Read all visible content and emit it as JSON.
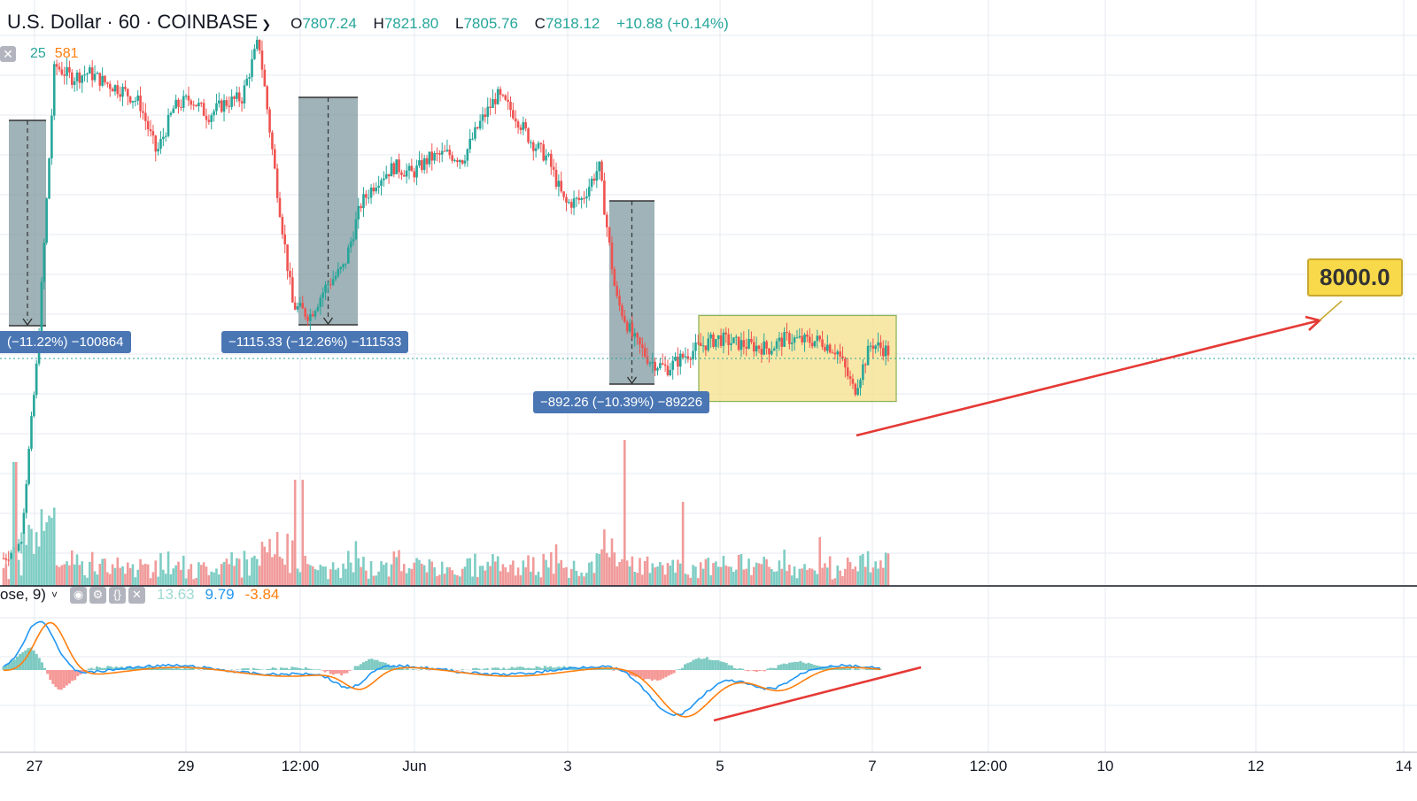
{
  "header": {
    "symbol": "U.S. Dollar",
    "interval": "60",
    "exchange": "COINBASE",
    "open_label": "O",
    "open": "7807.24",
    "high_label": "H",
    "high": "7821.80",
    "low_label": "L",
    "low": "7805.76",
    "close_label": "C",
    "close": "7818.12",
    "change": "+10.88 (+0.14%)"
  },
  "volume_legend": {
    "ma": "25",
    "value": "581"
  },
  "macd_legend": {
    "title": "ose, 9)",
    "hist": "13.63",
    "macd": "9.79",
    "signal": "-3.84"
  },
  "measure_labels": [
    "(−11.22%) −100864",
    "−1115.33 (−12.26%) −111533",
    "−892.26 (−10.39%) −89226"
  ],
  "target_callout": "8000.0",
  "colors": {
    "up": "#26a69a",
    "down": "#ef5350",
    "vol_up": "#7ecdc4",
    "vol_down": "#f19a9a",
    "macd_line": "#2196f3",
    "signal_line": "#ff7f0e",
    "trend": "#e53935",
    "box_fill": "#f5e08a",
    "measure_fill": "#7f9aa0",
    "label_bg": "#4a76b4"
  },
  "chart_data": {
    "type": "line",
    "title": "U.S. Dollar · 60 · COINBASE",
    "x_tick_labels": [
      "27",
      "29",
      "12:00",
      "Jun",
      "3",
      "5",
      "7",
      "12:00",
      "10",
      "12",
      "14"
    ],
    "series": [
      {
        "values": [
          7000,
          7060,
          7800,
          8950,
          8900,
          8920,
          8880,
          8850,
          8800,
          8600,
          8780,
          8820,
          8750,
          8800,
          8820,
          9050,
          8500,
          8000,
          7960,
          8080,
          8150,
          8400,
          8500,
          8550,
          8520,
          8580,
          8600,
          8580,
          8720,
          8830,
          8760,
          8650,
          8580,
          8400,
          8420,
          8550,
          8030,
          7870,
          7780,
          7750,
          7800,
          7840,
          7870,
          7850,
          7840,
          7830,
          7870,
          7860,
          7860,
          7820,
          7660,
          7850,
          7818
        ],
        "type": "candlestick-close"
      },
      {
        "name": "Volume",
        "type": "bar",
        "values": "per-candle volume"
      }
    ],
    "annotations": {
      "consolidation_box": {
        "y_low": 7620,
        "y_high": 7960
      },
      "target_price": 8000.0,
      "measurements": [
        "−11.22%",
        "−12.26%",
        "−10.39%"
      ]
    },
    "grid": true,
    "legend": "top-left"
  }
}
